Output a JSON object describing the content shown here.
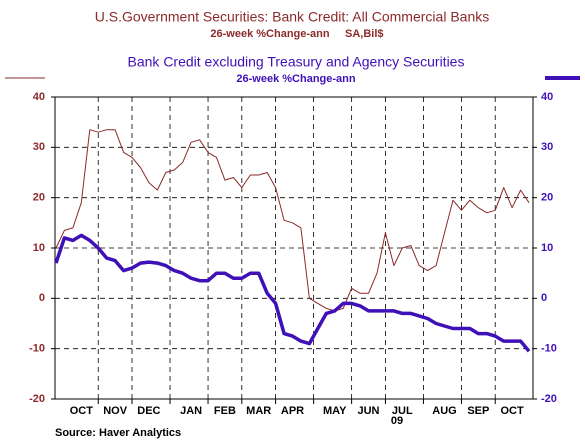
{
  "chart_data": {
    "type": "line",
    "series": [
      {
        "name": "U.S.Government Securities: Bank Credit: All Commercial Banks",
        "subtitle": "26-week %Change-ann",
        "units": "SA,Bil$",
        "color": "#8b2a2a",
        "values": [
          10,
          13.5,
          14,
          19,
          33.5,
          33,
          33.5,
          33.5,
          29,
          28,
          26,
          23,
          21.5,
          25,
          25.5,
          27,
          31,
          31.5,
          29,
          28,
          23.5,
          24,
          22,
          24.5,
          24.5,
          25,
          22,
          15.5,
          15,
          14,
          0,
          -1,
          -2,
          -2.5,
          -2,
          2,
          1,
          1,
          5,
          13,
          6.5,
          10,
          10.5,
          6.5,
          5.5,
          6.5,
          13,
          19.5,
          17.5,
          19.5,
          18,
          17,
          17.5,
          22,
          18,
          21.5,
          19
        ]
      },
      {
        "name": "Bank Credit excluding Treasury and Agency Securities",
        "subtitle": "26-week %Change-ann",
        "color": "#3f10b8",
        "axis": "y2",
        "values": [
          7,
          12,
          11.5,
          12.5,
          11.5,
          10,
          8,
          7.5,
          5.5,
          6,
          7,
          7.2,
          7,
          6.5,
          5.5,
          5,
          4,
          3.5,
          3.5,
          5,
          5,
          4,
          4,
          5,
          5,
          1,
          -1,
          -7,
          -7.5,
          -8.5,
          -9,
          -6,
          -3,
          -2.5,
          -1,
          -1,
          -1.5,
          -2.5,
          -2.5,
          -2.5,
          -2.5,
          -3,
          -3,
          -3.5,
          -4,
          -5,
          -5.5,
          -6,
          -6,
          -6,
          -7,
          -7,
          -7.5,
          -8.5,
          -8.5,
          -8.5,
          -10.5
        ]
      }
    ],
    "categories": [
      null,
      null,
      null,
      "OCT",
      null,
      null,
      null,
      "NOV",
      null,
      null,
      null,
      "DEC",
      null,
      null,
      null,
      null,
      "JAN",
      null,
      null,
      null,
      "FEB",
      null,
      null,
      null,
      "MAR",
      null,
      null,
      null,
      "APR",
      null,
      null,
      null,
      null,
      "MAY",
      null,
      null,
      null,
      "JUN",
      null,
      null,
      null,
      "JUL",
      null,
      null,
      null,
      null,
      "AUG",
      null,
      null,
      null,
      "SEP",
      null,
      null,
      null,
      "OCT",
      null,
      null
    ],
    "year_label": "09",
    "ylim": [
      -20,
      40
    ],
    "yticks": [
      -20,
      -10,
      0,
      10,
      20,
      30,
      40
    ],
    "y2lim": [
      -20,
      40
    ],
    "y2ticks": [
      -20,
      -10,
      0,
      10,
      20,
      30,
      40
    ],
    "grid": true,
    "source": "Source: Haver Analytics"
  }
}
